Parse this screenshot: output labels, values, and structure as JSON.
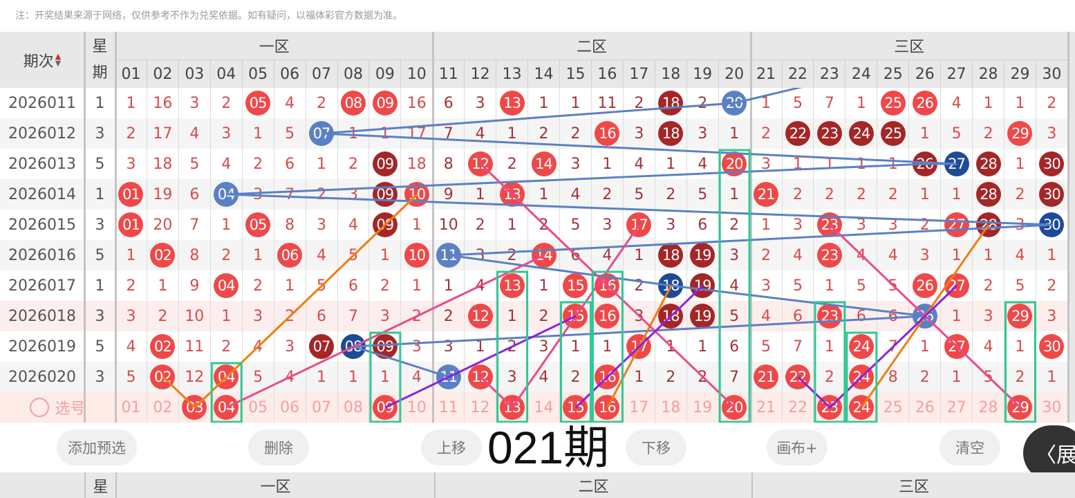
{
  "note": "注：开奖结果来源于网络，仅供参考不作为兑奖依据。如有疑问，以福体彩官方数据为准。",
  "header": {
    "period_label": "期次",
    "week_label_1": "星",
    "week_label_2": "期",
    "zones": [
      "一区",
      "二区",
      "三区"
    ],
    "numbers": [
      "01",
      "02",
      "03",
      "04",
      "05",
      "06",
      "07",
      "08",
      "09",
      "10",
      "11",
      "12",
      "13",
      "14",
      "15",
      "16",
      "17",
      "18",
      "19",
      "20",
      "21",
      "22",
      "23",
      "24",
      "25",
      "26",
      "27",
      "28",
      "29",
      "30"
    ]
  },
  "colors": {
    "red_ball": "#f04848",
    "dark_red_ball": "#a52626",
    "blue_ball": "#5b80c4",
    "dark_blue_ball": "#1f4a99",
    "highlight_box": "#2ec894",
    "line_blue": "#5b80c4",
    "line_orange": "#f07d10",
    "line_pink": "#e84a8a",
    "line_purple": "#8a22e0"
  },
  "rows": [
    {
      "period": "2026011",
      "week": "1",
      "cells": [
        "1",
        "16",
        "3",
        "2",
        "r:05",
        "4",
        "2",
        "r:08",
        "r:09",
        "16",
        "6",
        "3",
        "r:13",
        "1",
        "1",
        "11",
        "2",
        "d:18",
        "2",
        "b:20",
        "1",
        "5",
        "7",
        "1",
        "r:25",
        "r:26",
        "4",
        "1",
        "1",
        "2"
      ]
    },
    {
      "period": "2026012",
      "week": "3",
      "cells": [
        "2",
        "17",
        "4",
        "3",
        "1",
        "5",
        "b:07",
        "1",
        "1",
        "17",
        "7",
        "4",
        "1",
        "2",
        "2",
        "r:16",
        "3",
        "d:18",
        "3",
        "1",
        "2",
        "d:22",
        "d:23",
        "d:24",
        "d:25",
        "1",
        "5",
        "2",
        "r:29",
        "3"
      ]
    },
    {
      "period": "2026013",
      "week": "5",
      "cells": [
        "3",
        "18",
        "5",
        "4",
        "2",
        "6",
        "1",
        "2",
        "d:09",
        "18",
        "8",
        "r:12",
        "2",
        "r:14",
        "3",
        "1",
        "4",
        "1",
        "4",
        "r:20",
        "3",
        "1",
        "1",
        "1",
        "1",
        "d:26",
        "B:27",
        "d:28",
        "1",
        "d:30"
      ]
    },
    {
      "period": "2026014",
      "week": "1",
      "cells": [
        "r:01",
        "19",
        "6",
        "b:04",
        "3",
        "7",
        "2",
        "3",
        "d:09",
        "r:10",
        "9",
        "1",
        "r:13",
        "1",
        "4",
        "2",
        "5",
        "2",
        "5",
        "1",
        "r:21",
        "2",
        "2",
        "2",
        "2",
        "1",
        "1",
        "d:28",
        "2",
        "d:30"
      ]
    },
    {
      "period": "2026015",
      "week": "3",
      "cells": [
        "r:01",
        "20",
        "7",
        "1",
        "r:05",
        "8",
        "3",
        "4",
        "d:09",
        "1",
        "10",
        "2",
        "1",
        "2",
        "5",
        "3",
        "r:17",
        "3",
        "6",
        "2",
        "1",
        "3",
        "r:23",
        "3",
        "3",
        "2",
        "r:27",
        "d:28",
        "3",
        "B:30"
      ]
    },
    {
      "period": "2026016",
      "week": "5",
      "cells": [
        "1",
        "r:02",
        "8",
        "2",
        "1",
        "r:06",
        "4",
        "5",
        "1",
        "r:10",
        "b:11",
        "3",
        "2",
        "r:14",
        "6",
        "4",
        "1",
        "d:18",
        "d:19",
        "3",
        "2",
        "4",
        "r:23",
        "4",
        "4",
        "3",
        "1",
        "1",
        "4",
        "1"
      ]
    },
    {
      "period": "2026017",
      "week": "1",
      "cells": [
        "2",
        "1",
        "9",
        "r:04",
        "2",
        "1",
        "5",
        "6",
        "2",
        "1",
        "1",
        "4",
        "r:13",
        "1",
        "r:15",
        "r:16",
        "2",
        "B:18",
        "d:19",
        "4",
        "3",
        "5",
        "1",
        "5",
        "5",
        "r:26",
        "r:27",
        "2",
        "5",
        "2"
      ]
    },
    {
      "period": "2026018",
      "week": "3",
      "cells": [
        "3",
        "2",
        "10",
        "1",
        "3",
        "2",
        "6",
        "7",
        "3",
        "2",
        "2",
        "r:12",
        "1",
        "2",
        "r:15",
        "r:16",
        "3",
        "d:18",
        "d:19",
        "5",
        "4",
        "6",
        "r:23",
        "6",
        "6",
        "b:26",
        "1",
        "3",
        "r:29",
        "3"
      ]
    },
    {
      "period": "2026019",
      "week": "5",
      "cells": [
        "4",
        "r:02",
        "11",
        "2",
        "4",
        "3",
        "d:07",
        "B:08",
        "d:09",
        "3",
        "3",
        "1",
        "2",
        "3",
        "1",
        "1",
        "r:17",
        "1",
        "1",
        "6",
        "5",
        "7",
        "1",
        "r:24",
        "7",
        "1",
        "r:27",
        "4",
        "1",
        "r:30"
      ]
    },
    {
      "period": "2026020",
      "week": "3",
      "cells": [
        "5",
        "r:02",
        "12",
        "r:04",
        "5",
        "4",
        "1",
        "1",
        "1",
        "4",
        "b:11",
        "r:12",
        "3",
        "4",
        "2",
        "r:16",
        "1",
        "2",
        "2",
        "7",
        "r:21",
        "r:22",
        "2",
        "r:24",
        "8",
        "2",
        "1",
        "5",
        "2",
        "1"
      ]
    }
  ],
  "select_row": {
    "label": "选号",
    "selected": [
      "03",
      "04",
      "09",
      "13",
      "15",
      "16",
      "20",
      "23",
      "24",
      "29"
    ]
  },
  "highlight_boxes": [
    {
      "num": 4,
      "from": "2026020"
    },
    {
      "num": 9,
      "from": "2026019"
    },
    {
      "num": 13,
      "from": "2026017"
    },
    {
      "num": 15,
      "from": "2026018"
    },
    {
      "num": 16,
      "from": "2026017"
    },
    {
      "num": 20,
      "from": "2026013"
    },
    {
      "num": 23,
      "from": "2026018"
    },
    {
      "num": 24,
      "from": "2026019"
    },
    {
      "num": 29,
      "from": "2026018"
    }
  ],
  "lines": [
    {
      "color": "line_blue",
      "points": [
        [
          "2026010",
          24
        ],
        [
          "2026011",
          20
        ],
        [
          "2026012",
          7
        ],
        [
          "2026013",
          27
        ],
        [
          "2026013",
          26
        ],
        [
          "2026014",
          4
        ],
        [
          "2026015",
          30
        ],
        [
          "2026016",
          11
        ],
        [
          "2026017",
          18
        ],
        [
          "2026018",
          26
        ],
        [
          "2026019",
          8
        ],
        [
          "2026020",
          11
        ]
      ]
    },
    {
      "color": "line_orange",
      "points": [
        [
          "2026020",
          2
        ],
        [
          "select",
          3
        ],
        [
          "2026014",
          10
        ]
      ]
    },
    {
      "color": "line_orange",
      "points": [
        [
          "select",
          16
        ],
        [
          "2026017",
          18
        ]
      ]
    },
    {
      "color": "line_orange",
      "points": [
        [
          "select",
          24
        ],
        [
          "2026015",
          28
        ]
      ]
    },
    {
      "color": "line_pink",
      "points": [
        [
          "select",
          4
        ],
        [
          "2026016",
          14
        ]
      ]
    },
    {
      "color": "line_pink",
      "points": [
        [
          "2026013",
          12
        ],
        [
          "select",
          20
        ]
      ]
    },
    {
      "color": "line_pink",
      "points": [
        [
          "2026020",
          12
        ],
        [
          "select",
          13
        ],
        [
          "2026015",
          17
        ]
      ]
    },
    {
      "color": "line_pink",
      "points": [
        [
          "2026015",
          23
        ],
        [
          "select",
          29
        ]
      ]
    },
    {
      "color": "line_purple",
      "points": [
        [
          "select",
          9
        ],
        [
          "2026018",
          15
        ]
      ]
    },
    {
      "color": "line_purple",
      "points": [
        [
          "select",
          15
        ],
        [
          "2026017",
          19
        ]
      ]
    },
    {
      "color": "line_purple",
      "points": [
        [
          "2026020",
          22
        ],
        [
          "select",
          23
        ],
        [
          "2026017",
          27
        ]
      ]
    }
  ],
  "toolbar": {
    "add": "添加预选",
    "delete": "删除",
    "up": "上移",
    "down": "下移",
    "canvas": "画布+",
    "clear": "清空"
  },
  "overlay_period": "021期",
  "expand_label": "〈展",
  "footer_header": {
    "week": "星",
    "zones": [
      "一区",
      "二区",
      "三区"
    ]
  }
}
